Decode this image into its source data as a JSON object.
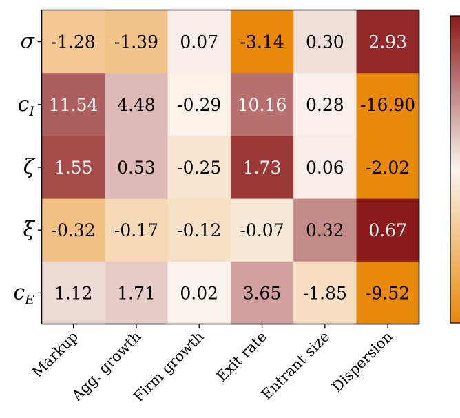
{
  "chart_data": {
    "type": "heatmap",
    "rows": [
      {
        "symbol": "σ",
        "sub": ""
      },
      {
        "symbol": "c",
        "sub": "I"
      },
      {
        "symbol": "ζ",
        "sub": ""
      },
      {
        "symbol": "ξ",
        "sub": ""
      },
      {
        "symbol": "c",
        "sub": "E"
      }
    ],
    "columns": [
      "Markup",
      "Agg. growth",
      "Firm growth",
      "Exit rate",
      "Entrant size",
      "Dispersion"
    ],
    "values": [
      [
        -1.28,
        -1.39,
        0.07,
        -3.14,
        0.3,
        2.93
      ],
      [
        11.54,
        4.48,
        -0.29,
        10.16,
        0.28,
        -16.9
      ],
      [
        1.55,
        0.53,
        -0.25,
        1.73,
        0.06,
        -2.02
      ],
      [
        -0.32,
        -0.17,
        -0.12,
        -0.07,
        0.32,
        0.67
      ],
      [
        1.12,
        1.71,
        0.02,
        3.65,
        -1.85,
        -9.52
      ]
    ],
    "labels": [
      [
        "-1.28",
        "-1.39",
        "0.07",
        "-3.14",
        "0.30",
        "2.93"
      ],
      [
        "11.54",
        "4.48",
        "-0.29",
        "10.16",
        "0.28",
        "-16.90"
      ],
      [
        "1.55",
        "0.53",
        "-0.25",
        "1.73",
        "0.06",
        "-2.02"
      ],
      [
        "-0.32",
        "-0.17",
        "-0.12",
        "-0.07",
        "0.32",
        "0.67"
      ],
      [
        "1.12",
        "1.71",
        "0.02",
        "3.65",
        "-1.85",
        "-9.52"
      ]
    ],
    "color_scale": "row-normalized diverging",
    "colors": {
      "negative": "#e8890c",
      "neutral": "#faf3ee",
      "positive": "#8b1a1a"
    },
    "colorbar": "right, partially visible",
    "title": "",
    "xlabel": "",
    "ylabel": ""
  }
}
